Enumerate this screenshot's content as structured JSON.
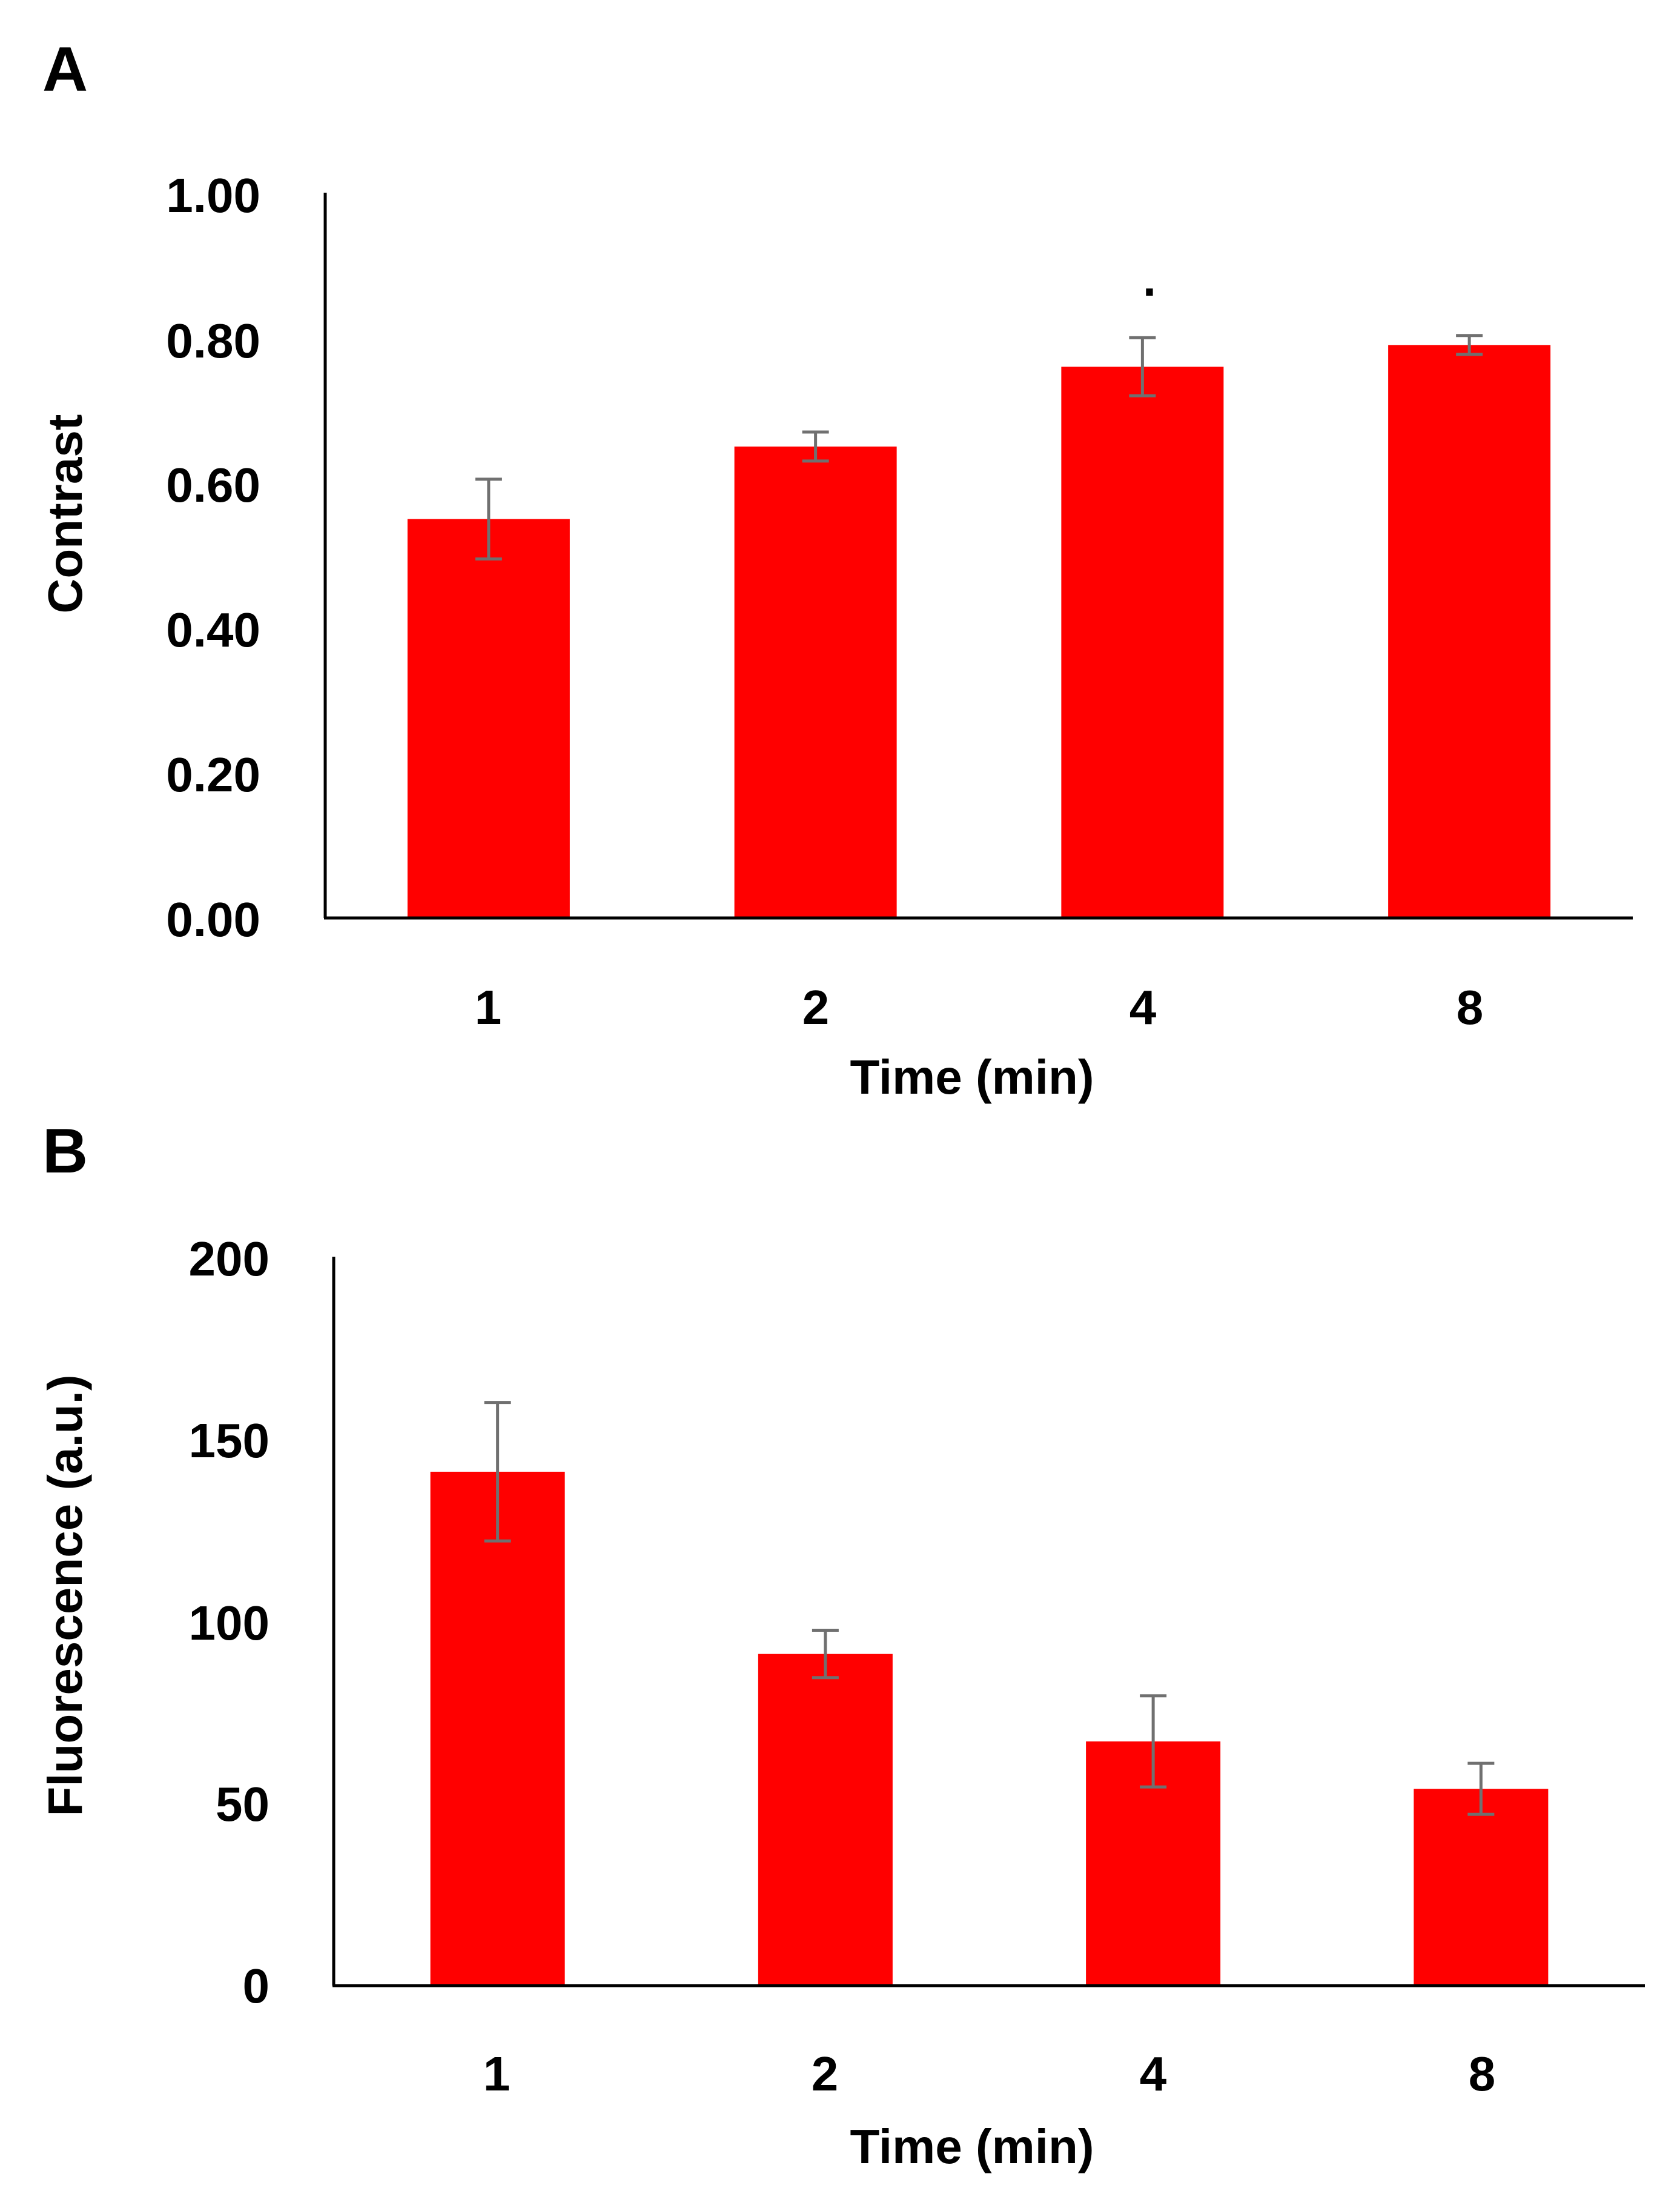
{
  "chart_data": [
    {
      "panel": "A",
      "type": "bar",
      "categories": [
        "1",
        "2",
        "4",
        "8"
      ],
      "values": [
        0.55,
        0.65,
        0.76,
        0.79
      ],
      "errors": [
        0.055,
        0.02,
        0.04,
        0.013
      ],
      "xlabel": "Time (min)",
      "ylabel": "Contrast",
      "ylim": [
        0,
        1
      ],
      "yticks": [
        0,
        0.2,
        0.4,
        0.6,
        0.8,
        1.0
      ],
      "ytick_labels": [
        "0.00",
        "0.20",
        "0.40",
        "0.60",
        "0.80",
        "1.00"
      ],
      "annotation": ".",
      "bar_color": "#ff0000",
      "error_color": "#707070",
      "grid": false
    },
    {
      "panel": "B",
      "type": "bar",
      "categories": [
        "1",
        "2",
        "4",
        "8"
      ],
      "values": [
        141,
        91,
        67,
        54
      ],
      "errors": [
        19,
        6.5,
        12.5,
        7
      ],
      "xlabel": "Time (min)",
      "ylabel": "Fluorescence (a.u.)",
      "ylim": [
        0,
        200
      ],
      "yticks": [
        0,
        50,
        100,
        150,
        200
      ],
      "ytick_labels": [
        "0",
        "50",
        "100",
        "150",
        "200"
      ],
      "bar_color": "#ff0000",
      "error_color": "#707070",
      "grid": false
    }
  ]
}
